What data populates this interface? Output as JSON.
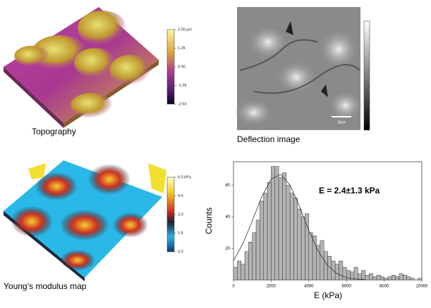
{
  "topography": {
    "caption": "Topography",
    "clim": [
      -2.5,
      2.5
    ],
    "colorbar_ticks": [
      {
        "value": 2.5,
        "label": "2.50 µm"
      },
      1.25,
      {
        "value": 0,
        "label": "0.00"
      },
      -1.25,
      {
        "value": -2.5,
        "label": "-2.50"
      }
    ]
  },
  "deflection": {
    "caption": "Deflection image",
    "scale_bar": "10µm"
  },
  "modulus": {
    "caption": "Young’s modulus map",
    "clim": [
      0,
      6
    ],
    "colorbar_ticks": [
      {
        "value": 6,
        "label": "6.0 kPa"
      },
      4.5,
      {
        "value": 3,
        "label": "3.0"
      },
      1.5,
      {
        "value": 0,
        "label": "0.0"
      }
    ]
  },
  "chart_data": {
    "type": "histogram",
    "annotation": "E = 2.4±1.3 kPa",
    "xlabel": "E (kPa)",
    "ylabel": "Counts",
    "bins": [
      0,
      200,
      400,
      600,
      800,
      1000,
      1200,
      1400,
      1600,
      1800,
      2000,
      2200,
      2400,
      2600,
      2800,
      3000,
      3200,
      3400,
      3600,
      3800,
      4000,
      4200,
      4400,
      4600,
      4800,
      5000,
      5200,
      5400,
      5600,
      5800,
      6000,
      6200,
      6400,
      6600,
      6800,
      7000,
      7200,
      7400,
      7600,
      7800,
      8000,
      8200,
      8400,
      8600,
      8800,
      9000,
      9200,
      9400,
      9600,
      9800,
      10000
    ],
    "values": [
      8,
      12,
      10,
      18,
      24,
      30,
      38,
      50,
      55,
      62,
      72,
      72,
      65,
      68,
      60,
      55,
      52,
      45,
      40,
      42,
      30,
      28,
      22,
      25,
      18,
      15,
      12,
      10,
      12,
      8,
      6,
      5,
      8,
      4,
      6,
      3,
      4,
      2,
      3,
      2,
      1,
      2,
      3,
      2,
      4,
      3,
      2,
      1,
      0,
      1
    ],
    "color": "#b4b4b4",
    "fit": {
      "x": [
        0,
        500,
        1000,
        1500,
        2000,
        2500,
        3000,
        3500,
        4000,
        4500,
        5000,
        5500,
        6000,
        6500,
        7000
      ],
      "values": [
        12.2,
        23,
        37.5,
        52.7,
        63.9,
        67,
        60.2,
        46.8,
        31.4,
        18.2,
        9.1,
        3.9,
        1.5,
        0.5,
        0.2
      ]
    },
    "xlim": [
      0,
      10000
    ],
    "ylim": [
      0,
      75
    ],
    "xticks": [
      0,
      2000,
      4000,
      6000,
      8000,
      10000
    ],
    "yticks": [
      20,
      40,
      60
    ]
  }
}
